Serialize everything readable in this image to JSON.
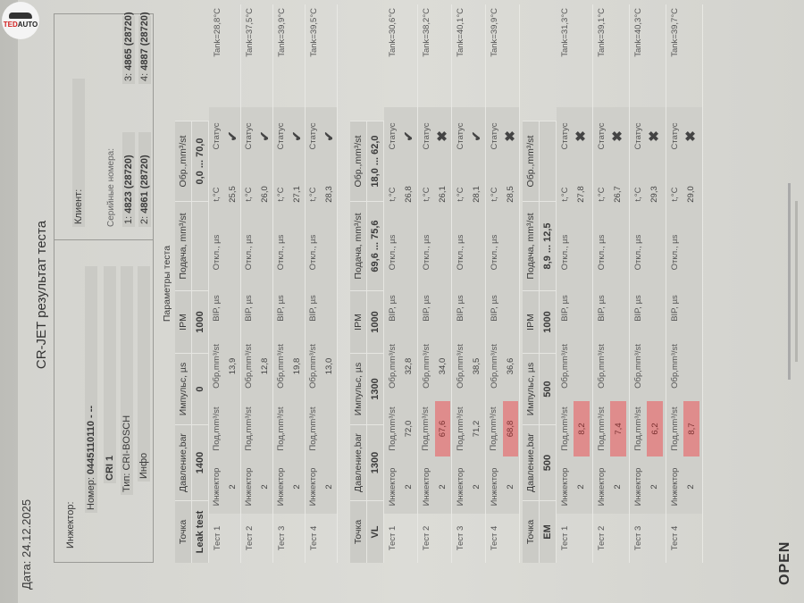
{
  "logo": {
    "text_red": "TED",
    "text_dark": "AUTO"
  },
  "header": {
    "date_label": "Дата:",
    "date": "24.12.2025",
    "title": "CR-JET результат теста"
  },
  "injector": {
    "label": "Инжектор:",
    "number_label": "Номер:",
    "number": "0445110110 - --",
    "model": "CRI 1",
    "type_label": "Тип:",
    "type": "CRI-BOSCH",
    "info_label": "Инфо"
  },
  "client": {
    "label": "Клиент:",
    "serials_label": "Серийные номера:",
    "serials": [
      {
        "n": "1:",
        "v": "4823 (28720)"
      },
      {
        "n": "2:",
        "v": "4861 (28720)"
      },
      {
        "n": "3:",
        "v": "4865 (28720)"
      },
      {
        "n": "4:",
        "v": "4887 (28720)"
      }
    ]
  },
  "params_title": "Параметры теста",
  "columns": {
    "point": "Точка",
    "pressure": "Давление,bar",
    "pulse": "Импульс, µs",
    "ipm": "IPM",
    "supply": "Подача, mm³/st",
    "return": "Обр.,mm³/st"
  },
  "test_labels": {
    "injector": "Инжектор",
    "supply": "Под,mm³/st",
    "return": "Обр,mm³/st",
    "bip": "BIP, µs",
    "offset": "Откл., µs",
    "temp": "t,°C",
    "status": "Статус"
  },
  "status_colors": {
    "ok": "#3f9c3c",
    "fail": "#d9707a",
    "out_of_range": "#df8c8c"
  },
  "sections": [
    {
      "point": "Leak test",
      "pressure": "1400",
      "pulse": "0",
      "ipm": "1000",
      "supply": "",
      "return": "0,0 ... 70,0",
      "tests": [
        {
          "name": "Тест 1",
          "injector": "2",
          "supply": "",
          "supply_fail": false,
          "return": "13,9",
          "temp": "25,5",
          "status": "ok",
          "tank": "Tank=28,8°C"
        },
        {
          "name": "Тест 2",
          "injector": "2",
          "supply": "",
          "supply_fail": false,
          "return": "12,8",
          "temp": "26,0",
          "status": "ok",
          "tank": "Tank=37,5°C"
        },
        {
          "name": "Тест 3",
          "injector": "2",
          "supply": "",
          "supply_fail": false,
          "return": "19,8",
          "temp": "27,1",
          "status": "ok",
          "tank": "Tank=39,9°C"
        },
        {
          "name": "Тест 4",
          "injector": "2",
          "supply": "",
          "supply_fail": false,
          "return": "13,0",
          "temp": "28,3",
          "status": "ok",
          "tank": "Tank=39,5°C"
        }
      ]
    },
    {
      "point": "VL",
      "pressure": "1300",
      "pulse": "1300",
      "ipm": "1000",
      "supply": "69,6 ... 75,6",
      "return": "18,0 ... 62,0",
      "tests": [
        {
          "name": "Тест 1",
          "injector": "2",
          "supply": "72,0",
          "supply_fail": false,
          "return": "32,8",
          "temp": "26,8",
          "status": "ok",
          "tank": "Tank=30,6°C"
        },
        {
          "name": "Тест 2",
          "injector": "2",
          "supply": "67,6",
          "supply_fail": true,
          "return": "34,0",
          "temp": "26,1",
          "status": "fail",
          "tank": "Tank=38,2°C"
        },
        {
          "name": "Тест 3",
          "injector": "2",
          "supply": "71,2",
          "supply_fail": false,
          "return": "38,5",
          "temp": "28,1",
          "status": "ok",
          "tank": "Tank=40,1°C"
        },
        {
          "name": "Тест 4",
          "injector": "2",
          "supply": "68,8",
          "supply_fail": true,
          "return": "36,6",
          "temp": "28,5",
          "status": "fail",
          "tank": "Tank=39,9°C"
        }
      ]
    },
    {
      "point": "EM",
      "pressure": "500",
      "pulse": "500",
      "ipm": "1000",
      "supply": "8,9 ... 12,5",
      "return": "",
      "tests": [
        {
          "name": "Тест 1",
          "injector": "2",
          "supply": "8,2",
          "supply_fail": true,
          "return": "",
          "temp": "27,8",
          "status": "fail",
          "tank": "Tank=31,3°C"
        },
        {
          "name": "Тест 2",
          "injector": "2",
          "supply": "7,4",
          "supply_fail": true,
          "return": "",
          "temp": "26,7",
          "status": "fail",
          "tank": "Tank=39,1°C"
        },
        {
          "name": "Тест 3",
          "injector": "2",
          "supply": "6,2",
          "supply_fail": true,
          "return": "",
          "temp": "29,3",
          "status": "fail",
          "tank": "Tank=40,3°C"
        },
        {
          "name": "Тест 4",
          "injector": "2",
          "supply": "8,7",
          "supply_fail": true,
          "return": "",
          "temp": "29,0",
          "status": "fail",
          "tank": "Tank=39,7°C"
        }
      ]
    }
  ],
  "footer": {
    "logo": "OPEN"
  }
}
